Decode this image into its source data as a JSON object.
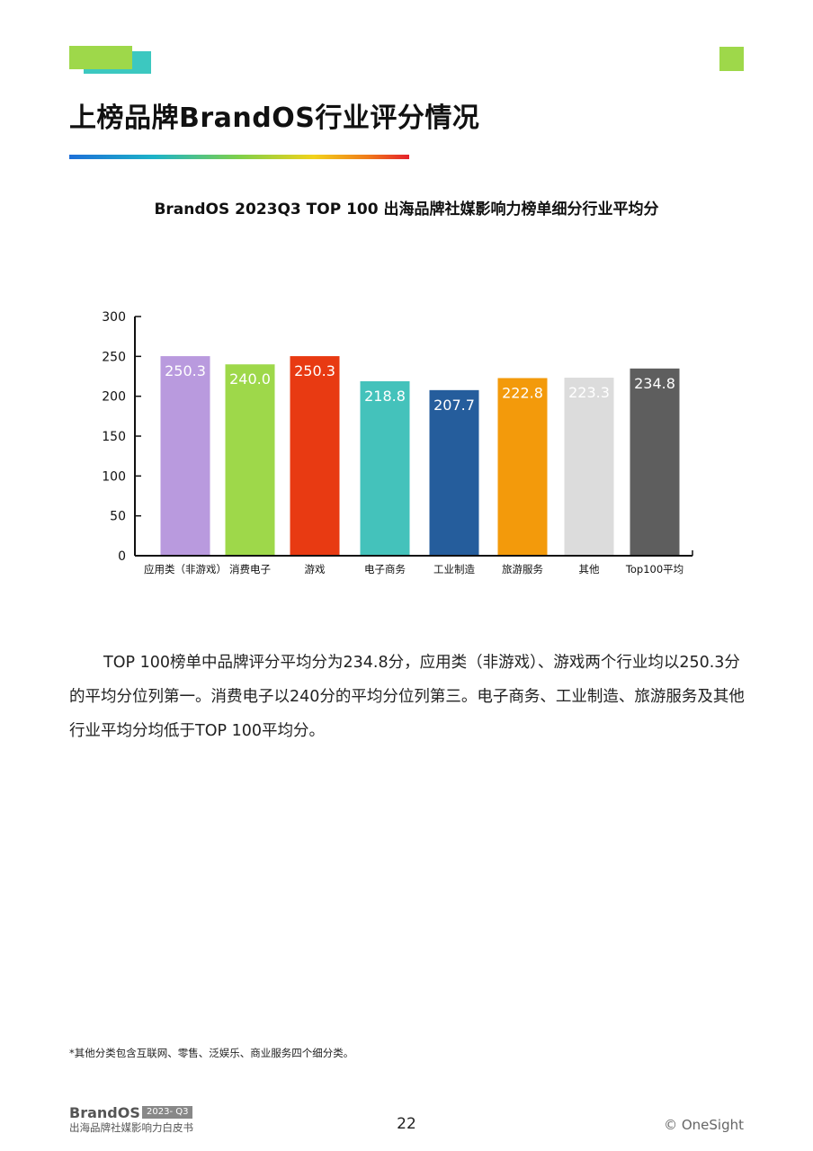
{
  "header": {
    "title": "上榜品牌BrandOS行业评分情况"
  },
  "chart_data": {
    "type": "bar",
    "title": "BrandOS 2023Q3 TOP 100 出海品牌社媒影响力榜单细分行业平均分",
    "categories": [
      "应用类（非游戏）",
      "消费电子",
      "游戏",
      "电子商务",
      "工业制造",
      "旅游服务",
      "其他",
      "Top100平均"
    ],
    "values": [
      250.3,
      240.0,
      250.3,
      218.8,
      207.7,
      222.8,
      223.3,
      234.8
    ],
    "labels": [
      "250.3",
      "240.0",
      "250.3",
      "218.8",
      "207.7",
      "222.8",
      "223.3",
      "234.8"
    ],
    "colors": [
      "#b99ade",
      "#9ed84a",
      "#e83a12",
      "#44c2bb",
      "#255d9c",
      "#f39a0b",
      "#dcdcdc",
      "#5e5e5e"
    ],
    "yticks": [
      0,
      50,
      100,
      150,
      200,
      250,
      300
    ],
    "ylim": [
      0,
      300
    ],
    "grid": false,
    "legend": "none"
  },
  "body": {
    "paragraph": "TOP 100榜单中品牌评分平均分为234.8分，应用类（非游戏）、游戏两个行业均以250.3分的平均分位列第一。消费电子以240分的平均分位列第三。电子商务、工业制造、旅游服务及其他行业平均分均低于TOP 100平均分。"
  },
  "footnote": "*其他分类包含互联网、零售、泛娱乐、商业服务四个细分类。",
  "footer": {
    "brand": "BrandOS",
    "badge": "2023- Q3",
    "subtitle": "出海品牌社媒影响力白皮书",
    "page_number": "22",
    "copyright": "© OneSight"
  }
}
